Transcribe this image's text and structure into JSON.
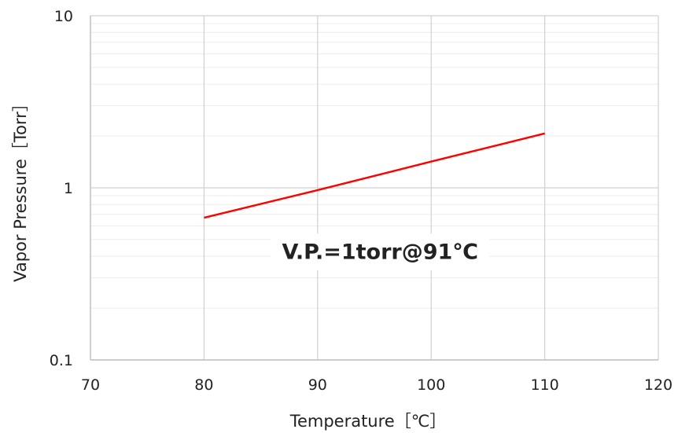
{
  "chart_data": {
    "type": "line",
    "title": "",
    "xlabel": "Temperature［℃］",
    "ylabel": "Vapor Pressure［Torr］",
    "xlim": [
      70,
      120
    ],
    "ylim": [
      0.1,
      10
    ],
    "y_scale": "log",
    "x_ticks": [
      "70",
      "80",
      "90",
      "100",
      "110",
      "120"
    ],
    "y_ticks": [
      "0.1",
      "1",
      "10"
    ],
    "grid": true,
    "legend": "none",
    "series": [
      {
        "color": "#ff0000",
        "x": [
          80,
          90,
          100,
          110
        ],
        "y": [
          0.67,
          0.97,
          1.42,
          2.07
        ]
      }
    ],
    "annotations": [
      {
        "text": "V.P.=1torr@91℃",
        "x": 95.5,
        "y": 0.43
      }
    ]
  }
}
